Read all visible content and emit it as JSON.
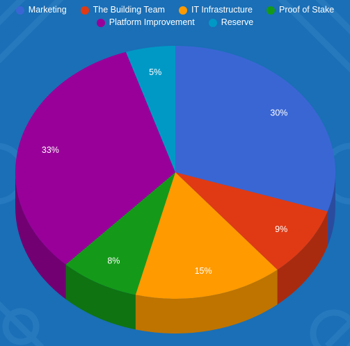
{
  "colors": {
    "background": "#1a6fb6"
  },
  "chart_data": {
    "type": "pie",
    "title": "",
    "legend_position": "top",
    "categories": [
      "Marketing",
      "The Building Team",
      "IT Infrastructure",
      "Proof of Stake",
      "Platform Improvement",
      "Reserve"
    ],
    "values": [
      30,
      9,
      15,
      8,
      33,
      5
    ],
    "labels": [
      "30%",
      "9%",
      "15%",
      "8%",
      "33%",
      "5%"
    ],
    "colors": [
      "#3a66d4",
      "#e03a14",
      "#ff9a00",
      "#149a18",
      "#990099",
      "#0099c6"
    ],
    "side_colors": [
      "#2b4c9e",
      "#a82b0f",
      "#bf7400",
      "#0f7312",
      "#720072",
      "#007394"
    ]
  }
}
